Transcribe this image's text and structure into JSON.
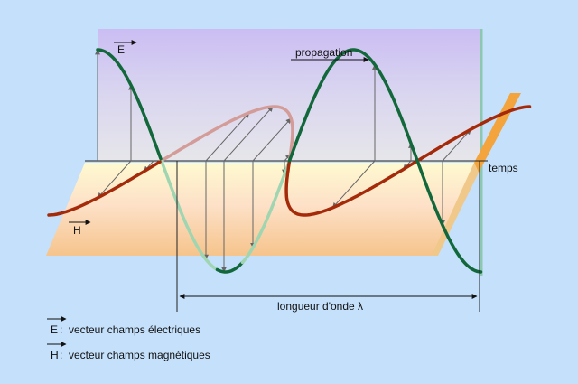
{
  "labels": {
    "e_vector": "E",
    "h_vector": "H",
    "propagation": "propagation",
    "time_axis": "temps",
    "wavelength": "longueur d'onde λ"
  },
  "legend": [
    {
      "symbol": "E",
      "description": ":  vecteur champs électriques"
    },
    {
      "symbol": "H",
      "description": ":  vecteur champs magnétiques"
    }
  ],
  "colors": {
    "background": "#c4e0fb",
    "electric_wave": "#12683a",
    "electric_wave_faded": "#9fd6b1",
    "magnetic_wave": "#a42a0a",
    "magnetic_wave_faded": "#d49c98",
    "vertical_plane_top": "#cbbdf3",
    "vertical_plane_bottom": "#dcdce8",
    "horizontal_plane_back": "#fdf6c0",
    "horizontal_plane_front": "#f7c68c",
    "arrows": "#666666"
  }
}
